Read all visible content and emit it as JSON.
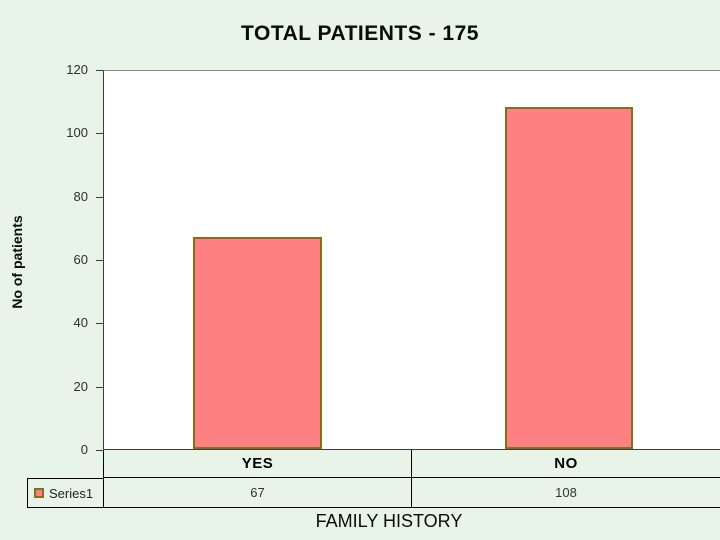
{
  "slide": {
    "background_color": "#E9F4E9"
  },
  "chart_data": {
    "type": "bar",
    "title": "TOTAL PATIENTS - 175",
    "categories": [
      "YES",
      "NO"
    ],
    "series": [
      {
        "name": "Series1",
        "values": [
          67,
          108
        ]
      }
    ],
    "xlabel": "FAMILY HISTORY",
    "ylabel": "No of patients",
    "ylim": [
      0,
      120
    ],
    "yticks": [
      0,
      20,
      40,
      60,
      80,
      100,
      120
    ],
    "grid": false,
    "legend_position": "bottom-left",
    "data_table_shown": true,
    "colors": {
      "bar_fill": "#FF8080",
      "bar_border": "#82711B",
      "plot_background": "#FFFFFF",
      "slide_background": "#E9F4E9"
    }
  }
}
